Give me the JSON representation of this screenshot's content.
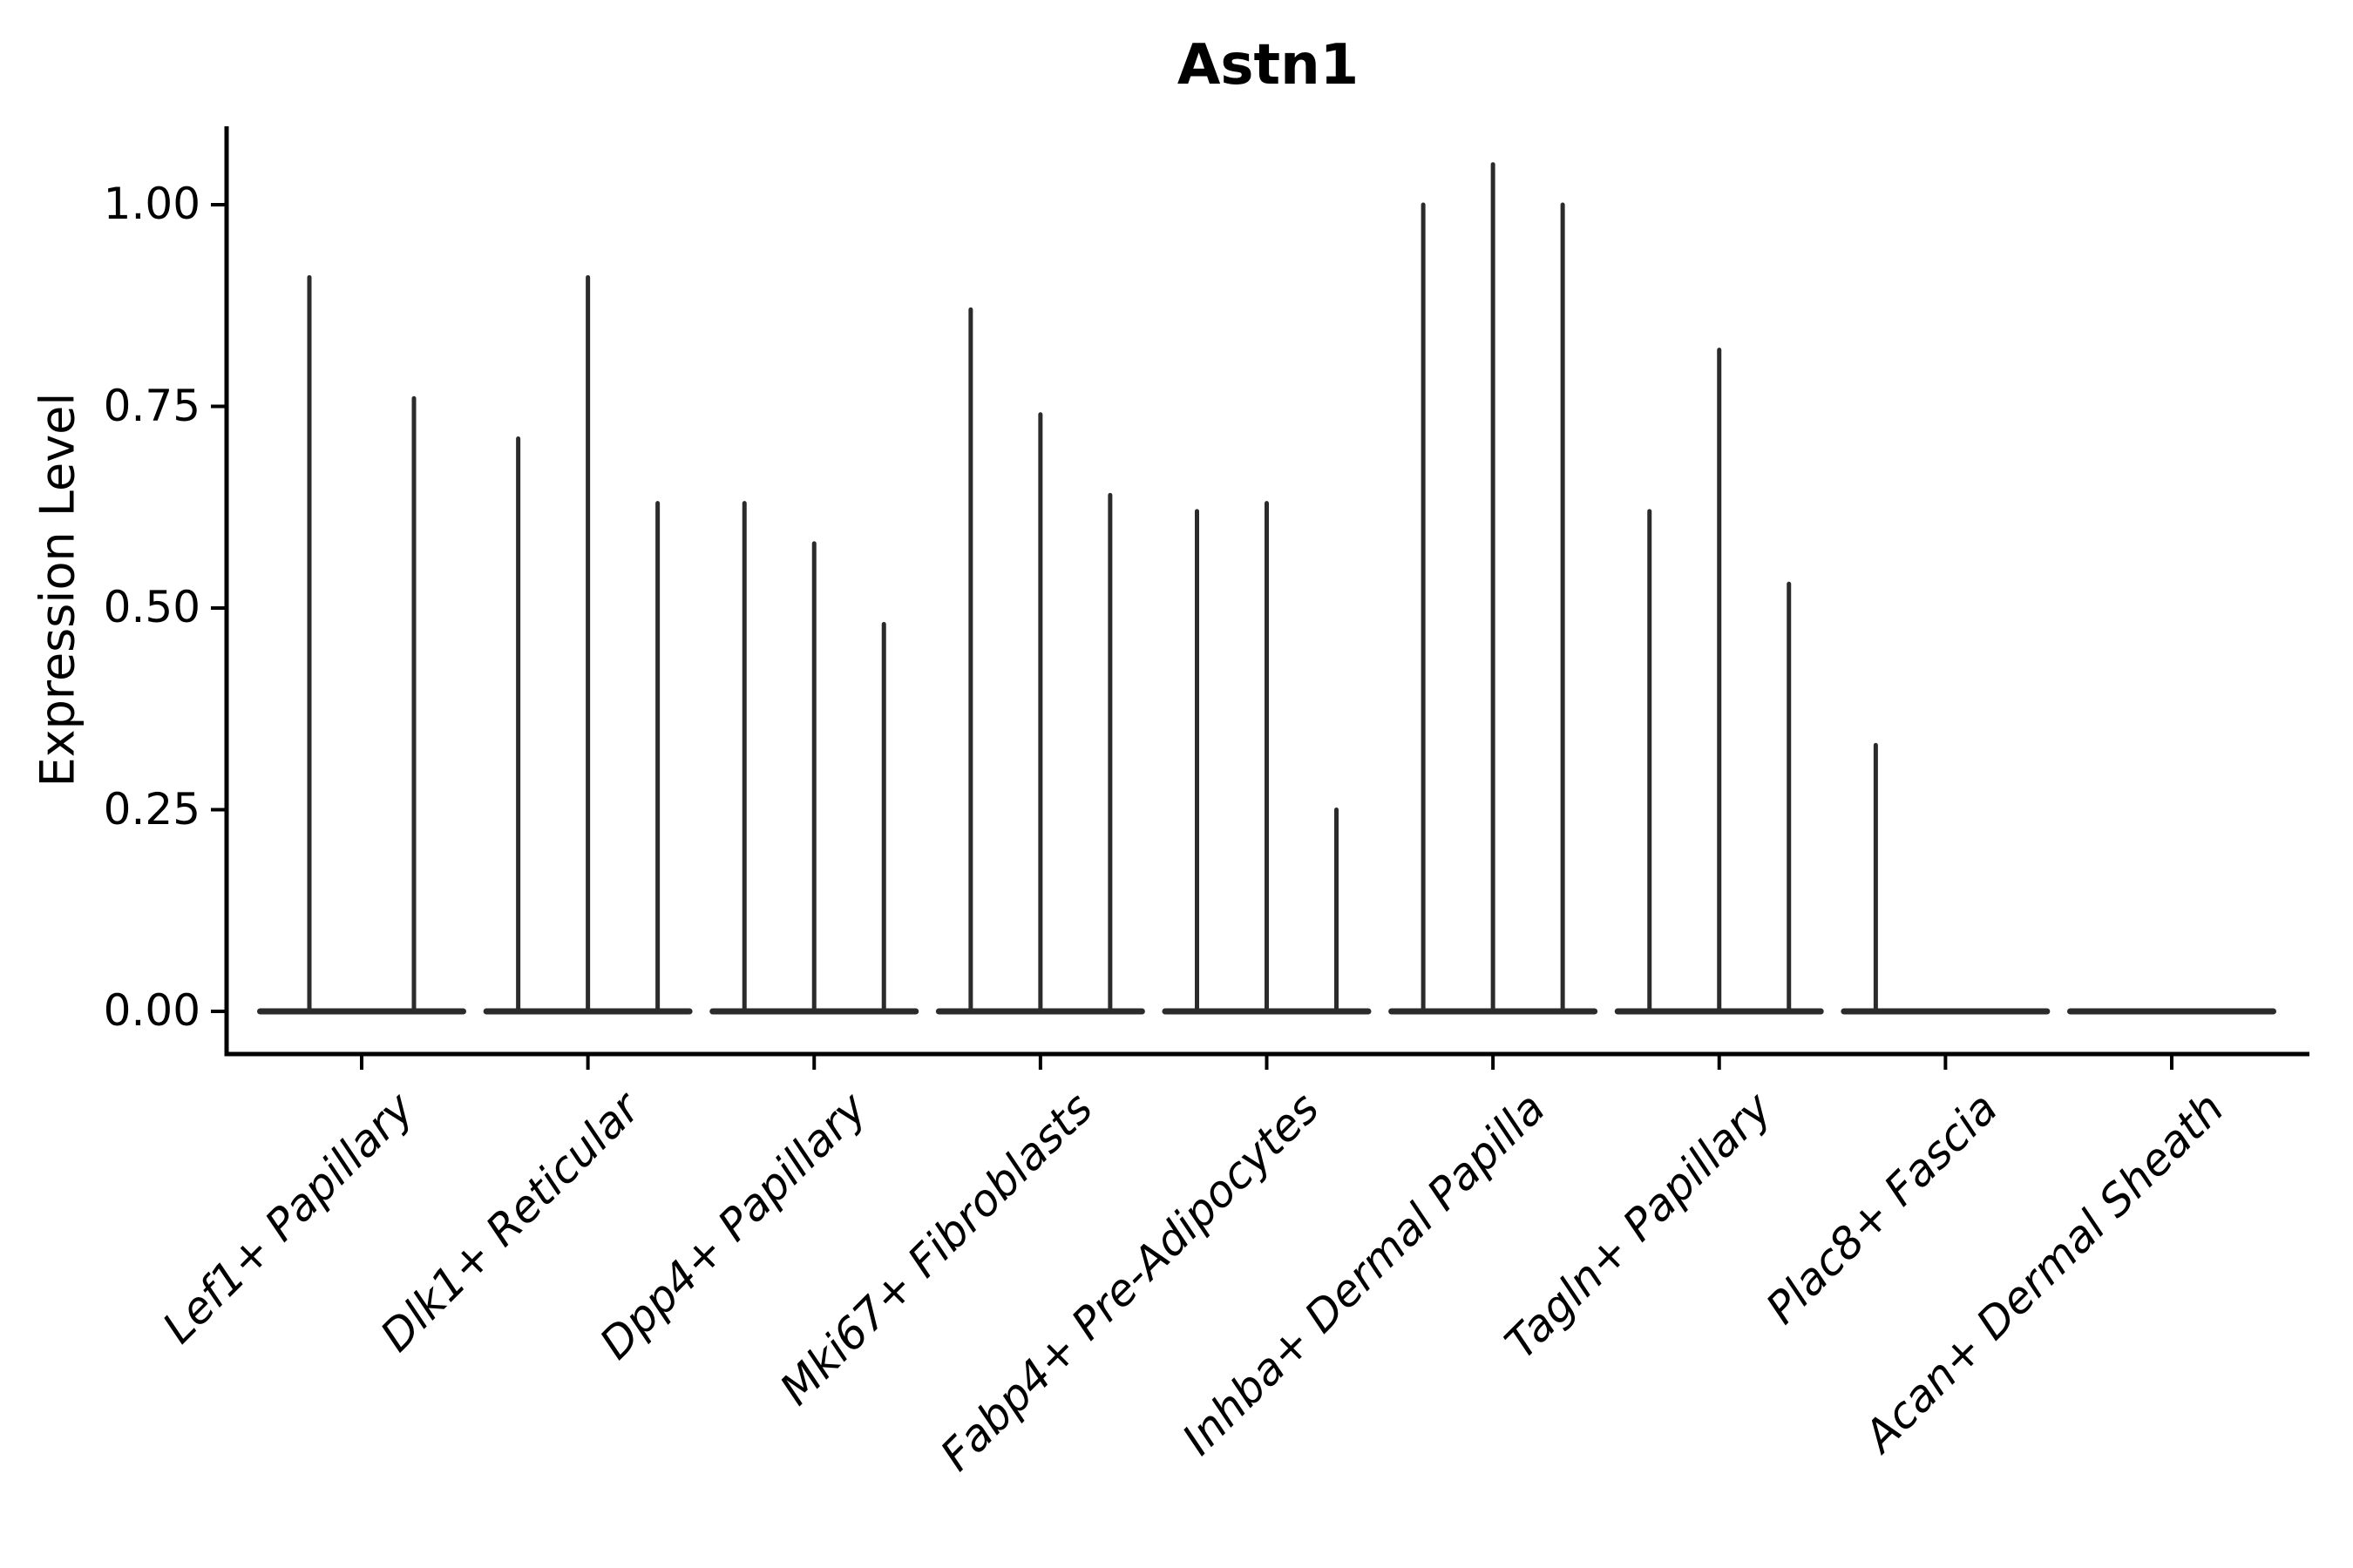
{
  "chart_data": {
    "type": "violin",
    "title": "Astn1",
    "ylabel": "Expression Level",
    "xlabel": "",
    "grid": false,
    "legend": null,
    "ylim": [
      -0.053,
      1.097
    ],
    "yticks": [
      0,
      0.25,
      0.5,
      0.75,
      1.0
    ],
    "ytick_labels": [
      "0.00",
      "0.25",
      "0.50",
      "0.75",
      "1.00"
    ],
    "categories": [
      "Lef1+ Papillary",
      "Dlk1+ Reticular",
      "Dpp4+ Papillary",
      "Mki67+ Fibroblasts",
      "Fabp4+ Pre-Adipocytes",
      "Inhba+ Dermal Papilla",
      "Tagln+ Papillary",
      "Plac8+ Fascia",
      "Acan+ Dermal Sheath"
    ],
    "groups": [
      {
        "label": "Lef1+ Papillary",
        "violin_max": [
          0.91,
          0.76
        ]
      },
      {
        "label": "Dlk1+ Reticular",
        "violin_max": [
          0.71,
          0.91,
          0.63
        ]
      },
      {
        "label": "Dpp4+ Papillary",
        "violin_max": [
          0.63,
          0.58,
          0.48
        ]
      },
      {
        "label": "Mki67+ Fibroblasts",
        "violin_max": [
          0.87,
          0.74,
          0.64
        ]
      },
      {
        "label": "Fabp4+ Pre-Adipocytes",
        "violin_max": [
          0.62,
          0.63,
          0.25
        ]
      },
      {
        "label": "Inhba+ Dermal Papilla",
        "violin_max": [
          1.0,
          1.05,
          1.0
        ]
      },
      {
        "label": "Tagln+ Papillary",
        "violin_max": [
          0.62,
          0.82,
          0.53
        ]
      },
      {
        "label": "Plac8+ Fascia",
        "violin_max": [
          0.33,
          null,
          null
        ]
      },
      {
        "label": "Acan+ Dermal Sheath",
        "violin_max": [
          null,
          null,
          null
        ]
      }
    ],
    "colors": {
      "violin": "#2b2b2b",
      "axis": "#000000",
      "text": "#000000",
      "background": "#ffffff"
    }
  }
}
